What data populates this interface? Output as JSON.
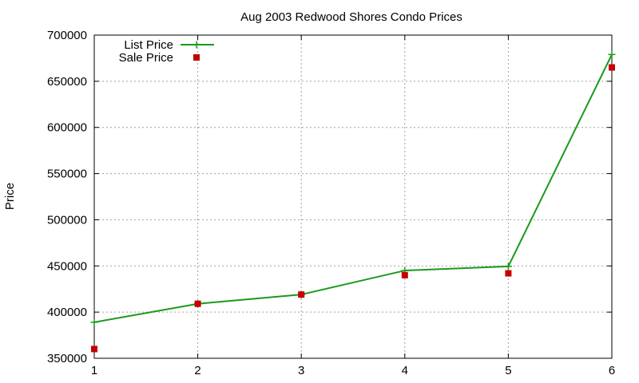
{
  "chart_data": {
    "type": "line",
    "title": "Aug 2003 Redwood Shores Condo Prices",
    "xlabel": "",
    "ylabel": "Price",
    "xlim": [
      1,
      6
    ],
    "ylim": [
      350000,
      700000
    ],
    "xticks": [
      "1",
      "2",
      "3",
      "4",
      "5",
      "6"
    ],
    "yticks": [
      "350000",
      "400000",
      "450000",
      "500000",
      "550000",
      "600000",
      "650000",
      "700000"
    ],
    "grid": true,
    "legend_position": "top-left",
    "x": [
      1,
      2,
      3,
      4,
      5,
      6
    ],
    "series": [
      {
        "name": "List Price",
        "style": "linespoints",
        "marker": "plus",
        "color": "#1a9a1a",
        "values": [
          389000,
          409000,
          419000,
          445000,
          449500,
          679000
        ]
      },
      {
        "name": "Sale Price",
        "style": "points",
        "marker": "square",
        "color": "#c40000",
        "values": [
          360000,
          409000,
          419000,
          440000,
          442000,
          665000
        ]
      }
    ]
  }
}
